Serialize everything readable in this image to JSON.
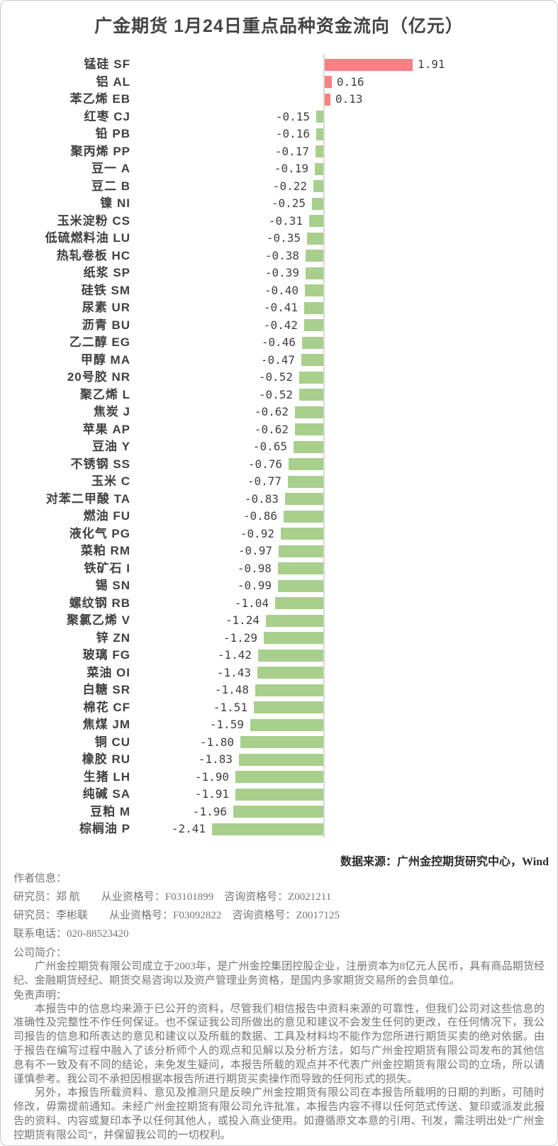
{
  "page": {
    "title": "广金期货 1月24日重点品种资金流向（亿元）"
  },
  "chart_data": {
    "type": "bar",
    "orientation": "horizontal",
    "title": "广金期货 1月24日重点品种资金流向（亿元）",
    "value_unit": "亿元",
    "xlabel": "",
    "ylabel": "",
    "grid": false,
    "xlim": [
      -2.6,
      2.1
    ],
    "categories": [
      "锰硅 SF",
      "铝 AL",
      "苯乙烯 EB",
      "红枣 CJ",
      "铅 PB",
      "聚丙烯 PP",
      "豆一 A",
      "豆二 B",
      "镍 NI",
      "玉米淀粉 CS",
      "低硫燃料油 LU",
      "热轧卷板 HC",
      "纸浆 SP",
      "硅铁 SM",
      "尿素 UR",
      "沥青 BU",
      "乙二醇 EG",
      "甲醇 MA",
      "20号胶 NR",
      "聚乙烯 L",
      "焦炭 J",
      "苹果 AP",
      "豆油 Y",
      "不锈钢 SS",
      "玉米 C",
      "对苯二甲酸 TA",
      "燃油 FU",
      "液化气 PG",
      "菜粕 RM",
      "铁矿石 I",
      "锡 SN",
      "螺纹钢 RB",
      "聚氯乙烯 V",
      "锌 ZN",
      "玻璃 FG",
      "菜油 OI",
      "白糖 SR",
      "棉花 CF",
      "焦煤 JM",
      "铜 CU",
      "橡胶 RU",
      "生猪 LH",
      "纯碱 SA",
      "豆粕 M",
      "棕榈油 P"
    ],
    "values": [
      1.91,
      0.16,
      0.13,
      -0.15,
      -0.16,
      -0.17,
      -0.19,
      -0.22,
      -0.25,
      -0.31,
      -0.35,
      -0.38,
      -0.39,
      -0.4,
      -0.41,
      -0.42,
      -0.46,
      -0.47,
      -0.52,
      -0.52,
      -0.62,
      -0.62,
      -0.65,
      -0.76,
      -0.77,
      -0.83,
      -0.86,
      -0.92,
      -0.97,
      -0.98,
      -0.99,
      -1.04,
      -1.24,
      -1.29,
      -1.42,
      -1.43,
      -1.48,
      -1.51,
      -1.59,
      -1.8,
      -1.83,
      -1.9,
      -1.91,
      -1.96,
      -2.41
    ],
    "colors": {
      "positive_bar": "#fc7f83",
      "negative_bar": "#a8cf8c",
      "axis_line": "#d9d9d9",
      "category_label": "#404040",
      "value_label": "#404040",
      "title": "#454545"
    },
    "legend": null
  },
  "footer": {
    "data_source": "数据来源：广州金控期货研究中心，Wind",
    "author_info_header": "作者信息：",
    "researchers": [
      "研究员：郑 航　　从业资格号：F03101899　咨询资格号：Z0021211",
      "研究员：李彬联　　从业资格号：F03092822　咨询资格号：Z0017125"
    ],
    "phone": "联系电话：020-88523420",
    "company_header": "公司简介：",
    "company_intro": "广州金控期货有限公司成立于2003年，是广州金控集团控股企业，注册资本为8亿元人民币，具有商品期货经纪、金融期货经纪、期货交易咨询以及资产管理业务资格，是国内多家期货交易所的会员单位。",
    "disclaimer_header": "免责声明：",
    "disclaimer_paragraphs": [
      "本报告中的信息均来源于已公开的资料，尽管我们相信报告中资料来源的可靠性，但我们公司对这些信息的准确性及完整性不作任何保证。也不保证我公司所做出的意见和建议不会发生任何的更改，在任何情况下，我公司报告的信息和所表达的意见和建议以及所载的数据、工具及材料均不能作为您所进行期货买卖的绝对依据。由于报告在编写过程中融入了该分析师个人的观点和见解以及分析方法，如与广州金控期货有限公司发布的其他信息有不一致及有不同的结论，未免发生疑问，本报告所载的观点并不代表广州金控期货有限公司的立场，所以请谨慎参考。我公司不承担因根据本报告所进行期货买卖操作而导致的任何形式的损失。",
      "另外，本报告所载资料、意见及推测只是反映广州金控期货有限公司在本报告所载明的日期的判断，可随时修改，毋需提前通知。未经广州金控期货有限公司允许批准，本报告内容不得以任何范式传送、复印或派发此报告的资料、内容或复印本予以任何其他人，或投入商业使用。如遵循原文本意的引用、刊发，需注明出处“广州金控期货有限公司”，并保留我公司的一切权利。"
    ]
  }
}
